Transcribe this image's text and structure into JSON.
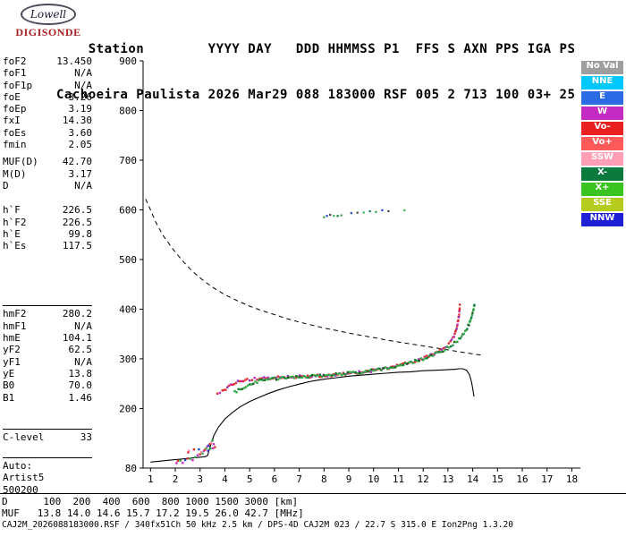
{
  "logo": {
    "name": "Lowell",
    "product": "DIGISONDE"
  },
  "header": {
    "line1": "    Station        YYYY DAY   DDD HHMMSS P1  FFS S AXN PPS IGA PS",
    "line2": "Cachoeira Paulista 2026 Mar29 088 183000 RSF 005 2 713 100 03+ 25"
  },
  "params": {
    "groups": [
      {
        "sep": false,
        "rows": [
          {
            "label": "foF2",
            "value": "13.450"
          },
          {
            "label": "foF1",
            "value": "N/A"
          },
          {
            "label": "foF1p",
            "value": "N/A"
          },
          {
            "label": "foE",
            "value": "3.26"
          },
          {
            "label": "foEp",
            "value": "3.19"
          },
          {
            "label": "fxI",
            "value": "14.30"
          },
          {
            "label": "foEs",
            "value": "3.60"
          },
          {
            "label": "fmin",
            "value": "2.05"
          }
        ]
      },
      {
        "sep": false,
        "rows": [
          {
            "label": "MUF(D)",
            "value": "42.70"
          },
          {
            "label": "M(D)",
            "value": "3.17"
          },
          {
            "label": "D",
            "value": "N/A"
          }
        ]
      },
      {
        "sep": false,
        "rows": [
          {
            "label": "h`F",
            "value": "226.5"
          },
          {
            "label": "h`F2",
            "value": "226.5"
          },
          {
            "label": "h`E",
            "value": "99.8"
          },
          {
            "label": "h`Es",
            "value": "117.5"
          }
        ]
      },
      {
        "sep": true,
        "rows": [
          {
            "label": "hmF2",
            "value": "280.2"
          },
          {
            "label": "hmF1",
            "value": "N/A"
          },
          {
            "label": "hmE",
            "value": "104.1"
          },
          {
            "label": "yF2",
            "value": "62.5"
          },
          {
            "label": "yF1",
            "value": "N/A"
          },
          {
            "label": "yE",
            "value": "13.8"
          },
          {
            "label": "B0",
            "value": "70.0"
          },
          {
            "label": "B1",
            "value": "1.46"
          }
        ]
      },
      {
        "sep": true,
        "rows": [
          {
            "label": "C-level",
            "value": "33"
          }
        ]
      },
      {
        "sep": true,
        "rows": [
          {
            "label": "Auto:",
            "value": ""
          },
          {
            "label": "Artist5",
            "value": ""
          },
          {
            "label": "500200",
            "value": ""
          }
        ]
      }
    ]
  },
  "legend": {
    "items": [
      {
        "label": "No Val",
        "color": "#9e9e9e"
      },
      {
        "label": "NNE",
        "color": "#00c8ff"
      },
      {
        "label": "E",
        "color": "#2b6be4"
      },
      {
        "label": "W",
        "color": "#c32bc3"
      },
      {
        "label": "Vo-",
        "color": "#e82020"
      },
      {
        "label": "Vo+",
        "color": "#ff5a5a"
      },
      {
        "label": "SSW",
        "color": "#ff9eb5"
      },
      {
        "label": "X-",
        "color": "#0c7a3c"
      },
      {
        "label": "X+",
        "color": "#39c41f"
      },
      {
        "label": "SSE",
        "color": "#b5cc1e"
      },
      {
        "label": "NNW",
        "color": "#1f1fd6"
      }
    ]
  },
  "chart_data": {
    "type": "scatter",
    "x_unit": "MHz",
    "y_unit": "km",
    "x_range": [
      0.7,
      18.2
    ],
    "y_range": [
      80,
      900
    ],
    "x_ticks": [
      1,
      2,
      3,
      4,
      5,
      6,
      7,
      8,
      9,
      10,
      11,
      12,
      13,
      14,
      15,
      16,
      17,
      18
    ],
    "y_ticks": [
      900,
      800,
      700,
      600,
      500,
      400,
      300,
      200,
      80
    ],
    "series": [
      {
        "name": "true-height-profile",
        "mode": "line",
        "color": "#000000",
        "width": 1.1,
        "points": [
          [
            1.0,
            92
          ],
          [
            1.4,
            94
          ],
          [
            1.8,
            96
          ],
          [
            2.2,
            98
          ],
          [
            2.6,
            100
          ],
          [
            3.0,
            102
          ],
          [
            3.2,
            103
          ],
          [
            3.3,
            105
          ],
          [
            3.4,
            122
          ],
          [
            3.55,
            145
          ],
          [
            3.75,
            163
          ],
          [
            4.0,
            179
          ],
          [
            4.3,
            192
          ],
          [
            4.6,
            203
          ],
          [
            5.0,
            214
          ],
          [
            5.4,
            223
          ],
          [
            5.8,
            231
          ],
          [
            6.2,
            238
          ],
          [
            6.6,
            244
          ],
          [
            7.0,
            249
          ],
          [
            7.5,
            255
          ],
          [
            8.0,
            259
          ],
          [
            8.5,
            262
          ],
          [
            9.0,
            265
          ],
          [
            9.5,
            267
          ],
          [
            10.0,
            269
          ],
          [
            10.5,
            271
          ],
          [
            11.0,
            273
          ],
          [
            11.5,
            274
          ],
          [
            12.0,
            276
          ],
          [
            12.5,
            277
          ],
          [
            13.0,
            278
          ],
          [
            13.3,
            279
          ],
          [
            13.45,
            280
          ],
          [
            13.6,
            280
          ],
          [
            13.75,
            277
          ],
          [
            13.87,
            268
          ],
          [
            13.95,
            254
          ],
          [
            14.0,
            240
          ],
          [
            14.05,
            224
          ]
        ]
      },
      {
        "name": "muf-transmission-curve",
        "mode": "line",
        "color": "#000000",
        "width": 1,
        "dash": "5,4",
        "points": [
          [
            0.8,
            622
          ],
          [
            1.0,
            600
          ],
          [
            1.2,
            576
          ],
          [
            1.5,
            549
          ],
          [
            1.9,
            521
          ],
          [
            2.3,
            497
          ],
          [
            2.7,
            476
          ],
          [
            3.1,
            459
          ],
          [
            3.5,
            444
          ],
          [
            4.0,
            429
          ],
          [
            4.5,
            417
          ],
          [
            5.0,
            406
          ],
          [
            5.5,
            397
          ],
          [
            6.0,
            389
          ],
          [
            6.5,
            381
          ],
          [
            7.0,
            374
          ],
          [
            7.5,
            368
          ],
          [
            8.0,
            362
          ],
          [
            8.5,
            357
          ],
          [
            9.0,
            352
          ],
          [
            9.5,
            347
          ],
          [
            10.0,
            343
          ],
          [
            10.5,
            338
          ],
          [
            11.0,
            334
          ],
          [
            11.5,
            330
          ],
          [
            12.0,
            326
          ],
          [
            12.5,
            322
          ],
          [
            13.0,
            318
          ],
          [
            13.5,
            314
          ],
          [
            14.0,
            310
          ],
          [
            14.4,
            307
          ]
        ]
      },
      {
        "name": "f-trace-o-mode",
        "mode": "dots",
        "size": 2.4,
        "jitter": 1.4,
        "densify": true,
        "colors": [
          "#e03131",
          "#c32bc3",
          "#d6274b",
          "#e03131",
          "#e03131",
          "#8f2bb8"
        ],
        "points": [
          [
            3.7,
            231
          ],
          [
            3.9,
            235
          ],
          [
            4.1,
            242
          ],
          [
            4.3,
            250
          ],
          [
            4.6,
            255
          ],
          [
            4.9,
            258
          ],
          [
            5.2,
            260
          ],
          [
            5.5,
            261
          ],
          [
            5.9,
            262
          ],
          [
            6.3,
            263
          ],
          [
            6.7,
            264
          ],
          [
            7.1,
            264
          ],
          [
            7.5,
            265
          ],
          [
            7.9,
            266
          ],
          [
            8.3,
            267
          ],
          [
            8.7,
            269
          ],
          [
            9.1,
            271
          ],
          [
            9.5,
            273
          ],
          [
            9.9,
            276
          ],
          [
            10.3,
            279
          ],
          [
            10.7,
            283
          ],
          [
            11.1,
            288
          ],
          [
            11.5,
            293
          ],
          [
            11.9,
            299
          ],
          [
            12.3,
            307
          ],
          [
            12.6,
            314
          ],
          [
            12.9,
            323
          ],
          [
            13.1,
            333
          ],
          [
            13.25,
            345
          ],
          [
            13.35,
            360
          ],
          [
            13.42,
            378
          ],
          [
            13.46,
            395
          ],
          [
            13.48,
            408
          ]
        ]
      },
      {
        "name": "f-trace-x-mode",
        "mode": "dots",
        "size": 2.4,
        "jitter": 1.4,
        "densify": true,
        "colors": [
          "#2f9e44",
          "#37b24d",
          "#0c7a3c",
          "#2f9e44",
          "#1b5e20",
          "#37b24d"
        ],
        "points": [
          [
            4.4,
            233
          ],
          [
            4.7,
            241
          ],
          [
            5.0,
            249
          ],
          [
            5.3,
            254
          ],
          [
            5.6,
            258
          ],
          [
            6.0,
            260
          ],
          [
            6.4,
            262
          ],
          [
            6.8,
            263
          ],
          [
            7.2,
            264
          ],
          [
            7.6,
            265
          ],
          [
            8.0,
            266
          ],
          [
            8.4,
            268
          ],
          [
            8.8,
            270
          ],
          [
            9.2,
            272
          ],
          [
            9.6,
            274
          ],
          [
            10.0,
            277
          ],
          [
            10.4,
            280
          ],
          [
            10.8,
            284
          ],
          [
            11.2,
            289
          ],
          [
            11.6,
            294
          ],
          [
            12.0,
            300
          ],
          [
            12.4,
            308
          ],
          [
            12.8,
            317
          ],
          [
            13.2,
            329
          ],
          [
            13.5,
            342
          ],
          [
            13.7,
            355
          ],
          [
            13.85,
            370
          ],
          [
            13.95,
            385
          ],
          [
            14.02,
            398
          ],
          [
            14.07,
            410
          ]
        ]
      },
      {
        "name": "e-region-echoes",
        "mode": "dots",
        "size": 2.4,
        "jitter": 1.2,
        "densify": false,
        "colors": [
          "#c32bc3",
          "#e03131",
          "#2f9e44",
          "#c32bc3",
          "#2745c9",
          "#e03131",
          "#ff8fab",
          "#2f9e44"
        ],
        "points": [
          [
            2.05,
            90
          ],
          [
            2.1,
            94
          ],
          [
            2.2,
            96
          ],
          [
            2.3,
            92
          ],
          [
            2.4,
            97
          ],
          [
            2.5,
            99
          ],
          [
            2.55,
            115
          ],
          [
            2.6,
            101
          ],
          [
            2.7,
            97
          ],
          [
            2.75,
            116
          ],
          [
            2.8,
            103
          ],
          [
            2.9,
            105
          ],
          [
            2.95,
            117
          ],
          [
            3.0,
            107
          ],
          [
            3.05,
            111
          ],
          [
            3.1,
            109
          ],
          [
            3.15,
            114
          ],
          [
            3.2,
            117
          ],
          [
            3.25,
            119
          ],
          [
            3.3,
            122
          ],
          [
            3.35,
            125
          ],
          [
            3.4,
            128
          ],
          [
            3.45,
            131
          ],
          [
            3.5,
            134
          ],
          [
            3.55,
            129
          ],
          [
            3.6,
            123
          ],
          [
            3.42,
            118
          ],
          [
            3.52,
            120
          ],
          [
            3.32,
            115
          ],
          [
            2.52,
            113
          ]
        ]
      },
      {
        "name": "second-hop-echoes",
        "mode": "dots",
        "size": 2.2,
        "jitter": 0.8,
        "densify": false,
        "colors": [
          "#2f9e44",
          "#2745c9",
          "#444444",
          "#37b24d",
          "#0c7a3c"
        ],
        "points": [
          [
            8.0,
            585
          ],
          [
            8.12,
            588
          ],
          [
            8.25,
            590
          ],
          [
            8.4,
            589
          ],
          [
            8.55,
            587
          ],
          [
            8.7,
            590
          ],
          [
            9.1,
            592
          ],
          [
            9.35,
            594
          ],
          [
            9.6,
            595
          ],
          [
            9.85,
            596
          ],
          [
            10.1,
            597
          ],
          [
            10.35,
            598
          ],
          [
            10.6,
            597
          ],
          [
            11.25,
            599
          ]
        ]
      }
    ]
  },
  "footer": {
    "d_row": "D      100  200  400  600  800 1000 1500 3000 [km]",
    "muf_row": "MUF   13.8 14.0 14.6 15.7 17.2 19.5 26.0 42.7 [MHz]",
    "info": "CAJ2M_2026088183000.RSF / 340fx51Ch 50 kHz 2.5 km / DPS-4D CAJ2M 023 / 22.7 S 315.0 E Ion2Png 1.3.20"
  }
}
